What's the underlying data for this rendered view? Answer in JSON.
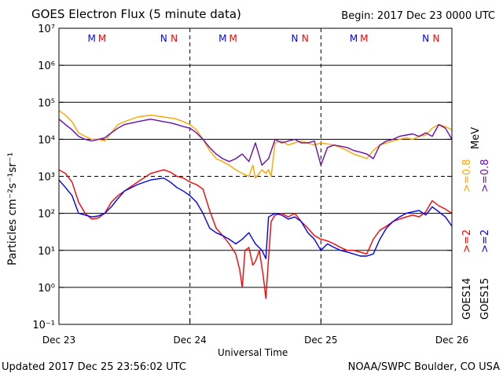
{
  "header": {
    "title": "GOES Electron Flux (5 minute data)",
    "begin": "Begin: 2017 Dec 23 0000 UTC"
  },
  "footer": {
    "updated": "Updated 2017 Dec 25 23:56:02 UTC",
    "credit": "NOAA/SWPC Boulder, CO USA"
  },
  "colors": {
    "goes14_2mev": "#ff0000",
    "goes14_08mev": "#ffa500",
    "goes15_2mev": "#0000ff",
    "goes15_08mev": "#6a0dad",
    "marker_m": "#0000ff",
    "marker_m2": "#ff0000",
    "marker_n": "#0000ff",
    "marker_n2": "#ff0000"
  },
  "markers": [
    "M",
    "M",
    "N",
    "N"
  ],
  "chart_data": {
    "type": "line",
    "title": "GOES Electron Flux (5 minute data)",
    "xlabel": "Universal Time",
    "ylabel": "Particles cm⁻²s⁻¹sr⁻¹",
    "yscale": "log",
    "ylim": [
      0.1,
      10000000
    ],
    "y_ticks": [
      "10⁻¹",
      "10⁰",
      "10¹",
      "10²",
      "10³",
      "10⁴",
      "10⁵",
      "10⁶",
      "10⁷"
    ],
    "x_ticks": [
      "Dec 23",
      "Dec 24",
      "Dec 25",
      "Dec 26"
    ],
    "xlim": [
      0,
      3
    ],
    "x_unit": "days since 2017 Dec 23 0000 UTC",
    "grid": "horizontal at each decade; dashed at 10³",
    "legend": {
      "position": "right, vertical",
      "goes14": {
        "label": "GOES14",
        "entries": [
          ">=2",
          ">=0.8"
        ]
      },
      "goes15": {
        "label": "GOES15",
        "entries": [
          ">=2",
          ">=0.8"
        ]
      },
      "unit": "MeV"
    },
    "series": [
      {
        "name": "GOES14 >=2 MeV",
        "color": "#ff0000",
        "x": [
          0,
          0.05,
          0.1,
          0.15,
          0.2,
          0.25,
          0.3,
          0.35,
          0.4,
          0.45,
          0.5,
          0.6,
          0.7,
          0.8,
          0.85,
          0.9,
          0.95,
          1.0,
          1.05,
          1.1,
          1.15,
          1.2,
          1.25,
          1.3,
          1.35,
          1.38,
          1.4,
          1.42,
          1.45,
          1.48,
          1.5,
          1.53,
          1.56,
          1.58,
          1.6,
          1.62,
          1.65,
          1.7,
          1.75,
          1.8,
          1.85,
          1.9,
          1.95,
          2.0,
          2.05,
          2.1,
          2.15,
          2.2,
          2.25,
          2.3,
          2.35,
          2.4,
          2.45,
          2.5,
          2.55,
          2.6,
          2.65,
          2.7,
          2.75,
          2.8,
          2.85,
          2.9,
          2.95,
          3.0
        ],
        "y": [
          1500,
          1200,
          700,
          200,
          100,
          70,
          75,
          100,
          200,
          300,
          400,
          700,
          1200,
          1500,
          1300,
          1000,
          900,
          700,
          600,
          450,
          120,
          40,
          25,
          15,
          8,
          3,
          1,
          10,
          12,
          4,
          5,
          10,
          2,
          0.5,
          6,
          60,
          90,
          100,
          80,
          100,
          60,
          40,
          25,
          20,
          18,
          15,
          12,
          10,
          10,
          9,
          8,
          20,
          35,
          45,
          60,
          70,
          80,
          90,
          80,
          110,
          220,
          160,
          130,
          100
        ]
      },
      {
        "name": "GOES15 >=2 MeV",
        "color": "#0000ff",
        "x": [
          0,
          0.05,
          0.1,
          0.15,
          0.2,
          0.25,
          0.3,
          0.35,
          0.4,
          0.45,
          0.5,
          0.6,
          0.7,
          0.8,
          0.85,
          0.9,
          0.95,
          1.0,
          1.05,
          1.1,
          1.15,
          1.2,
          1.25,
          1.3,
          1.35,
          1.4,
          1.45,
          1.5,
          1.55,
          1.58,
          1.6,
          1.65,
          1.7,
          1.75,
          1.8,
          1.85,
          1.9,
          1.95,
          2.0,
          2.05,
          2.1,
          2.15,
          2.2,
          2.25,
          2.3,
          2.35,
          2.4,
          2.45,
          2.5,
          2.55,
          2.6,
          2.65,
          2.7,
          2.75,
          2.8,
          2.85,
          2.9,
          2.95,
          3.0
        ],
        "y": [
          800,
          500,
          300,
          100,
          90,
          80,
          85,
          100,
          150,
          250,
          400,
          600,
          800,
          900,
          700,
          500,
          400,
          300,
          200,
          100,
          40,
          30,
          25,
          20,
          15,
          20,
          30,
          15,
          10,
          6,
          80,
          100,
          90,
          70,
          80,
          60,
          30,
          20,
          10,
          15,
          12,
          10,
          9,
          8,
          7,
          7,
          8,
          20,
          40,
          60,
          80,
          100,
          110,
          120,
          90,
          150,
          110,
          80,
          45
        ]
      },
      {
        "name": "GOES14 >=0.8 MeV",
        "color": "#ffa500",
        "x": [
          0,
          0.05,
          0.1,
          0.15,
          0.2,
          0.25,
          0.3,
          0.35,
          0.4,
          0.45,
          0.5,
          0.6,
          0.7,
          0.8,
          0.85,
          0.9,
          0.95,
          1.0,
          1.05,
          1.1,
          1.15,
          1.2,
          1.25,
          1.3,
          1.35,
          1.4,
          1.45,
          1.48,
          1.5,
          1.55,
          1.58,
          1.6,
          1.62,
          1.65,
          1.7,
          1.75,
          1.8,
          1.85,
          1.9,
          1.95,
          2.0,
          2.05,
          2.1,
          2.15,
          2.2,
          2.25,
          2.3,
          2.35,
          2.4,
          2.45,
          2.5,
          2.55,
          2.6,
          2.65,
          2.7,
          2.75,
          2.8,
          2.85,
          2.9,
          2.95,
          3.0
        ],
        "y": [
          60000,
          45000,
          30000,
          15000,
          12000,
          10000,
          10000,
          9000,
          15000,
          25000,
          30000,
          40000,
          45000,
          40000,
          38000,
          35000,
          30000,
          25000,
          18000,
          10000,
          5000,
          3000,
          2500,
          2000,
          1500,
          1200,
          1000,
          2000,
          900,
          1500,
          1200,
          1500,
          1000,
          8000,
          9000,
          7000,
          8000,
          9000,
          8000,
          7000,
          8000,
          7500,
          7000,
          6000,
          5000,
          4000,
          3500,
          3000,
          5000,
          7000,
          8000,
          9000,
          10000,
          11000,
          10000,
          12000,
          13000,
          20000,
          25000,
          22000,
          18000
        ]
      },
      {
        "name": "GOES15 >=0.8 MeV",
        "color": "#6a0dad",
        "x": [
          0,
          0.05,
          0.1,
          0.15,
          0.2,
          0.25,
          0.3,
          0.35,
          0.4,
          0.45,
          0.5,
          0.6,
          0.7,
          0.8,
          0.85,
          0.9,
          0.95,
          1.0,
          1.05,
          1.1,
          1.15,
          1.2,
          1.25,
          1.3,
          1.35,
          1.4,
          1.45,
          1.5,
          1.55,
          1.6,
          1.65,
          1.7,
          1.75,
          1.8,
          1.85,
          1.9,
          1.95,
          2.0,
          2.05,
          2.1,
          2.15,
          2.2,
          2.25,
          2.3,
          2.35,
          2.4,
          2.45,
          2.5,
          2.55,
          2.6,
          2.65,
          2.7,
          2.75,
          2.8,
          2.85,
          2.9,
          2.95,
          3.0
        ],
        "y": [
          35000,
          25000,
          18000,
          12000,
          10000,
          9000,
          10000,
          11000,
          15000,
          20000,
          25000,
          30000,
          35000,
          30000,
          28000,
          25000,
          22000,
          20000,
          15000,
          10000,
          6000,
          4000,
          3000,
          2500,
          3000,
          4000,
          2500,
          8000,
          2000,
          3000,
          10000,
          8000,
          9000,
          10000,
          8000,
          8000,
          9000,
          2000,
          6000,
          7000,
          6500,
          6000,
          5000,
          4500,
          4000,
          3000,
          7000,
          9000,
          10000,
          12000,
          13000,
          14000,
          12000,
          15000,
          12000,
          25000,
          20000,
          10000
        ]
      }
    ]
  }
}
